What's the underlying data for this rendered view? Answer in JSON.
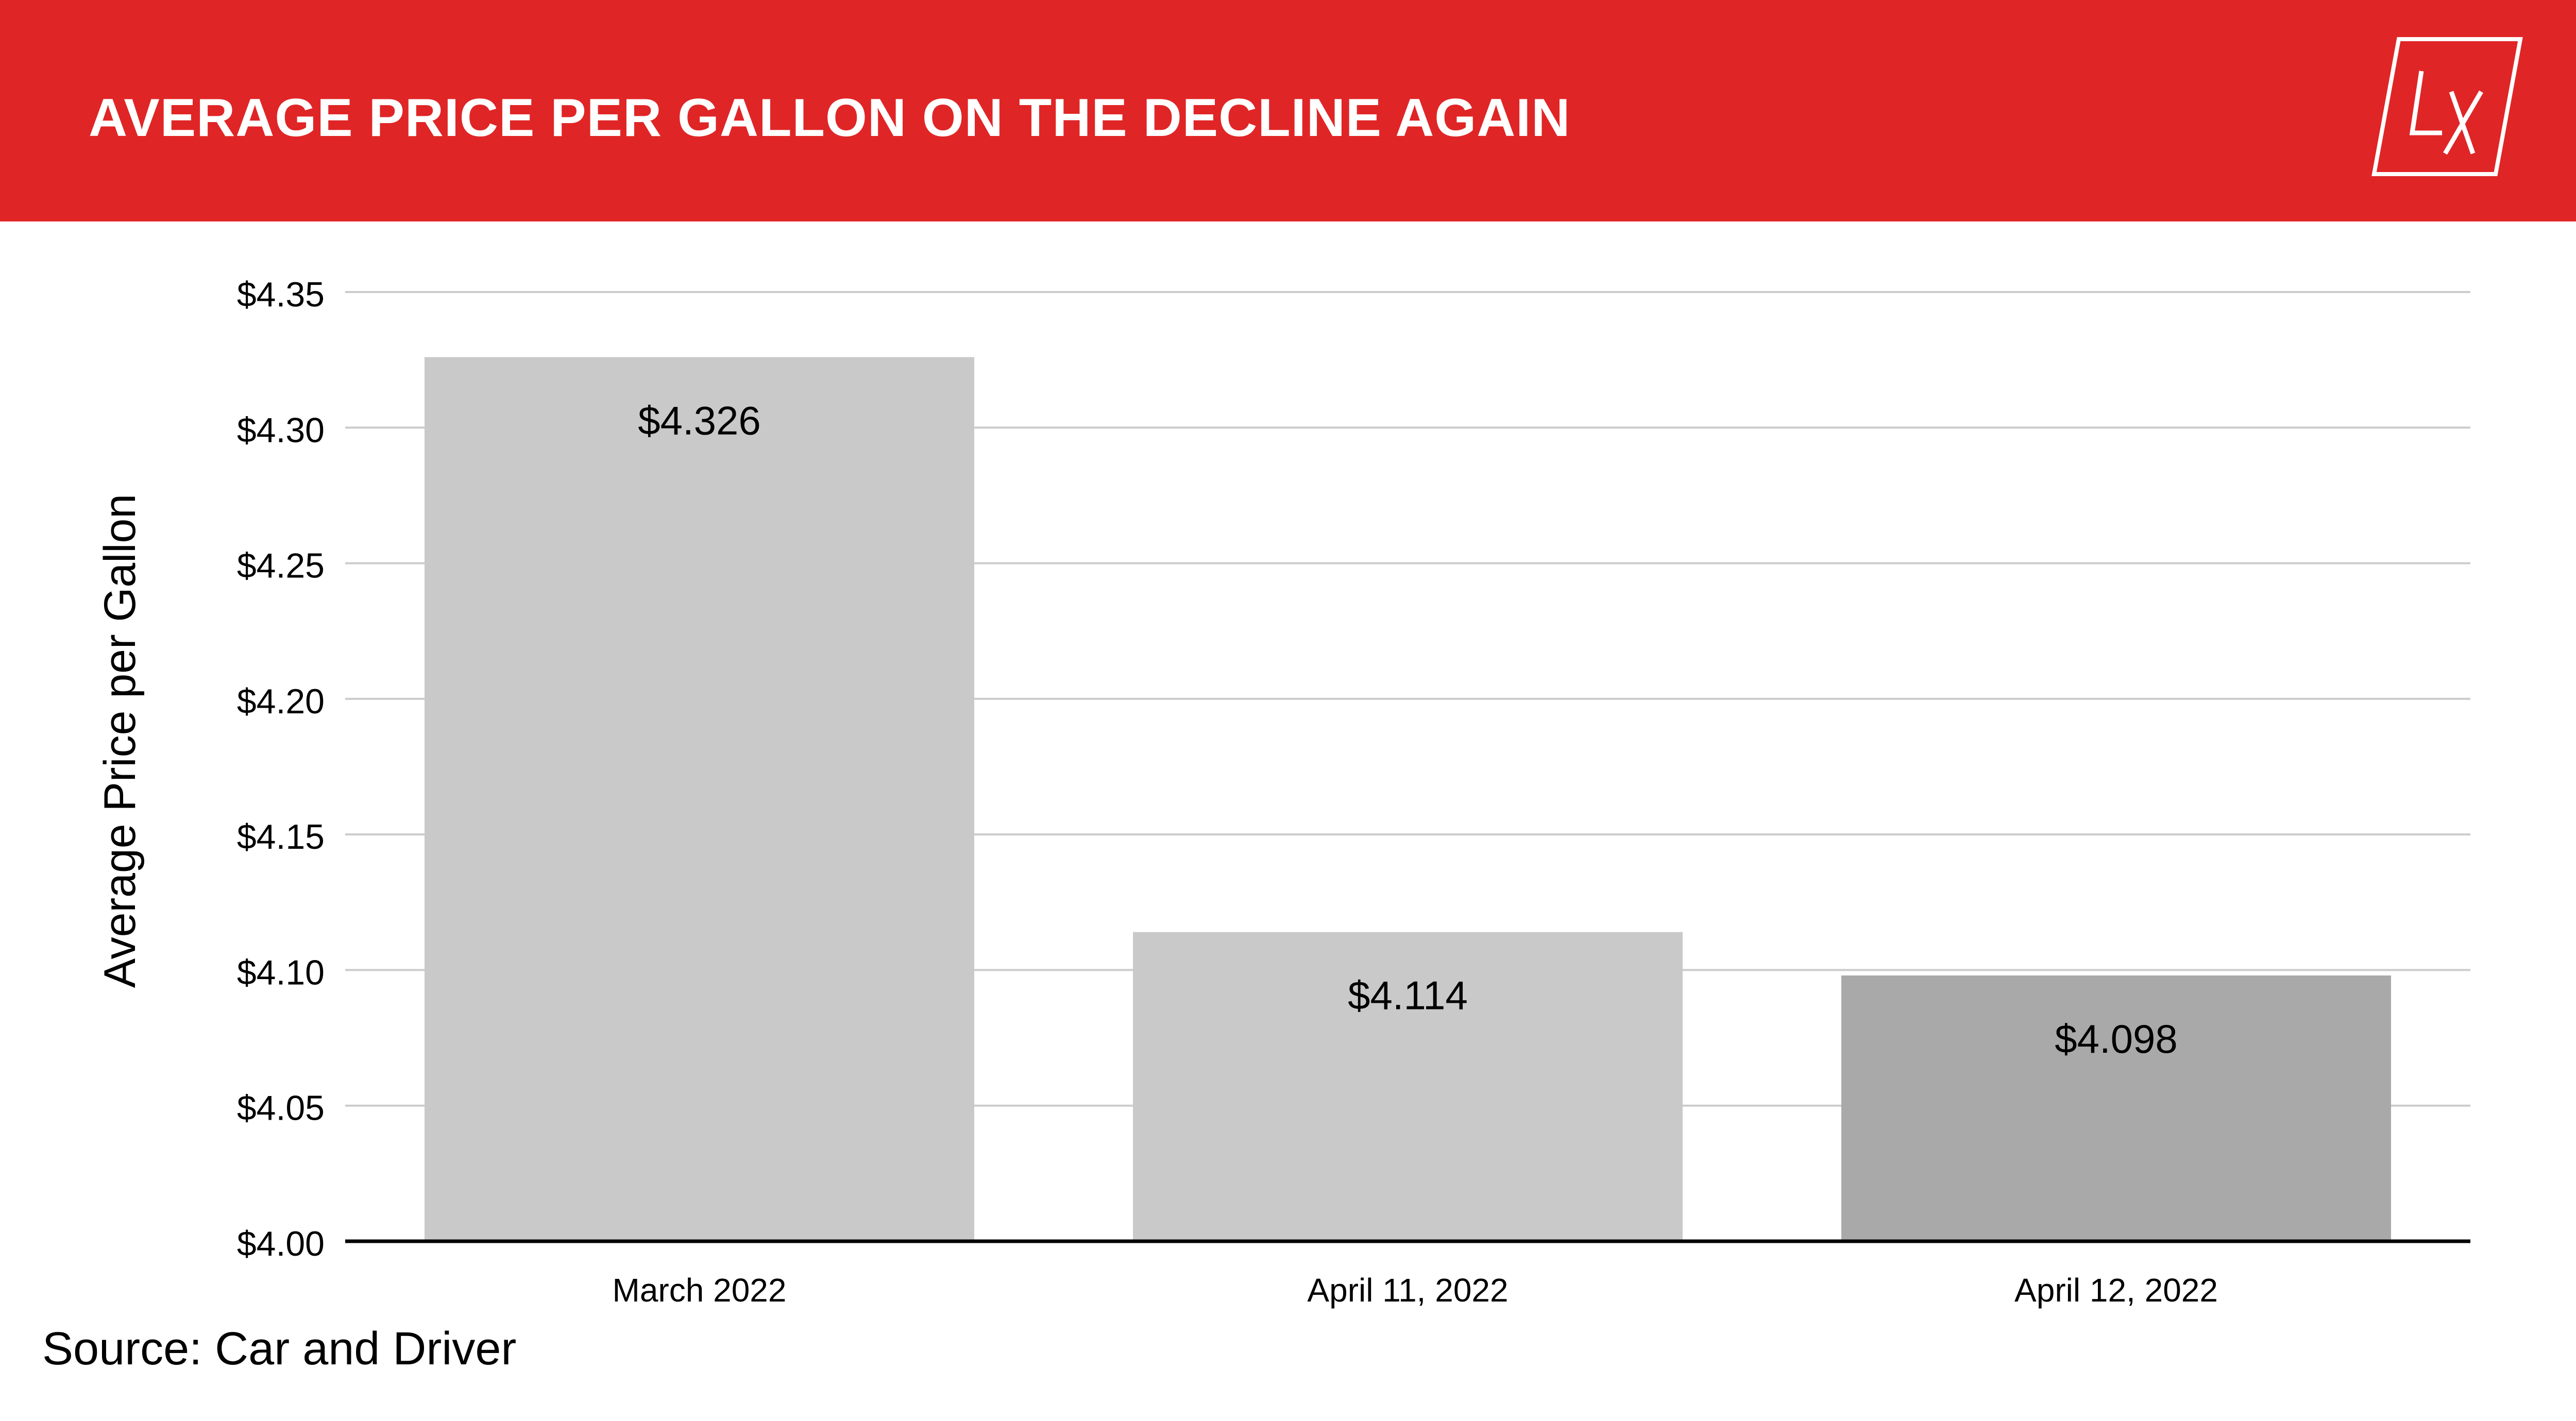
{
  "header": {
    "title": "AVERAGE PRICE PER GALLON ON THE DECLINE AGAIN",
    "logo_text": "LX"
  },
  "source_note": "Source: Car and Driver",
  "colors": {
    "brand_red": "#e02526",
    "bar_light": "#c9c9c9",
    "bar_dark": "#a9a9a9",
    "grid": "#cccccc"
  },
  "chart_data": {
    "type": "bar",
    "title": "AVERAGE PRICE PER GALLON ON THE DECLINE AGAIN",
    "ylabel": "Average Price per Gallon",
    "xlabel": "",
    "categories": [
      "March 2022",
      "April 11, 2022",
      "April 12, 2022"
    ],
    "values": [
      4.326,
      4.114,
      4.098
    ],
    "value_labels": [
      "$4.326",
      "$4.114",
      "$4.098"
    ],
    "bar_colors": [
      "#c9c9c9",
      "#c9c9c9",
      "#a9a9a9"
    ],
    "ylim": [
      4.0,
      4.35
    ],
    "yticks": [
      {
        "value": 4.35,
        "label": "$4.35"
      },
      {
        "value": 4.3,
        "label": "$4.30"
      },
      {
        "value": 4.25,
        "label": "$4.25"
      },
      {
        "value": 4.2,
        "label": "$4.20"
      },
      {
        "value": 4.15,
        "label": "$4.15"
      },
      {
        "value": 4.1,
        "label": "$4.10"
      },
      {
        "value": 4.05,
        "label": "$4.05"
      },
      {
        "value": 4.0,
        "label": "$4.00"
      }
    ],
    "grid": true,
    "legend": "none"
  }
}
